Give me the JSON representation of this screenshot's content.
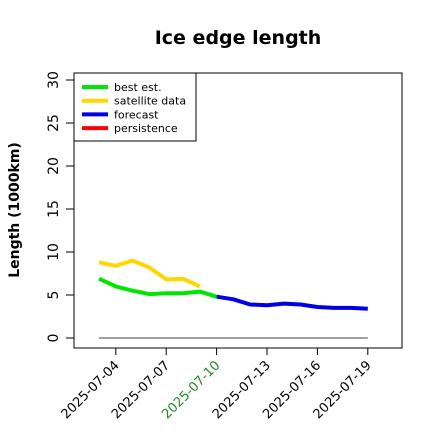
{
  "chart_data": {
    "type": "line",
    "title": "Ice edge length",
    "xlabel": "",
    "ylabel": "Length (1000km)",
    "ylim": [
      0,
      30
    ],
    "xlim": [
      "2025-07-01",
      "2025-07-20"
    ],
    "yticks": [
      "0",
      "5",
      "10",
      "15",
      "20",
      "25",
      "30"
    ],
    "xticks": [
      {
        "label": "2025-07-04",
        "date": "2025-07-04",
        "color": "#000000"
      },
      {
        "label": "2025-07-07",
        "date": "2025-07-07",
        "color": "#000000"
      },
      {
        "label": "2025-07-10",
        "date": "2025-07-10",
        "color": "#228B22"
      },
      {
        "label": "2025-07-13",
        "date": "2025-07-13",
        "color": "#000000"
      },
      {
        "label": "2025-07-16",
        "date": "2025-07-16",
        "color": "#000000"
      },
      {
        "label": "2025-07-19",
        "date": "2025-07-19",
        "color": "#000000"
      }
    ],
    "legend_position": "top-left",
    "grid": false,
    "series": [
      {
        "name": "best est.",
        "color": "#00E600",
        "x": [
          "2025-07-03",
          "2025-07-04",
          "2025-07-05",
          "2025-07-06",
          "2025-07-07",
          "2025-07-08",
          "2025-07-09",
          "2025-07-10"
        ],
        "y": [
          6.9,
          6.0,
          5.5,
          5.1,
          5.2,
          5.2,
          5.4,
          4.8
        ]
      },
      {
        "name": "satellite data",
        "color": "#FFD700",
        "x": [
          "2025-07-03",
          "2025-07-04",
          "2025-07-05",
          "2025-07-06",
          "2025-07-07",
          "2025-07-08",
          "2025-07-09"
        ],
        "y": [
          8.8,
          8.4,
          9.0,
          8.2,
          6.8,
          6.9,
          6.0
        ]
      },
      {
        "name": "forecast",
        "color": "#0000E6",
        "x": [
          "2025-07-10",
          "2025-07-11",
          "2025-07-12",
          "2025-07-13",
          "2025-07-14",
          "2025-07-15",
          "2025-07-16",
          "2025-07-17",
          "2025-07-18",
          "2025-07-19"
        ],
        "y": [
          4.8,
          4.5,
          3.9,
          3.8,
          4.0,
          3.9,
          3.6,
          3.5,
          3.5,
          3.4
        ]
      },
      {
        "name": "persistence",
        "color": "#FF0000",
        "x": [],
        "y": []
      }
    ],
    "reference_line": {
      "color": "#808080",
      "x": [
        "2025-07-03",
        "2025-07-19"
      ],
      "y": [
        0,
        0
      ]
    }
  }
}
